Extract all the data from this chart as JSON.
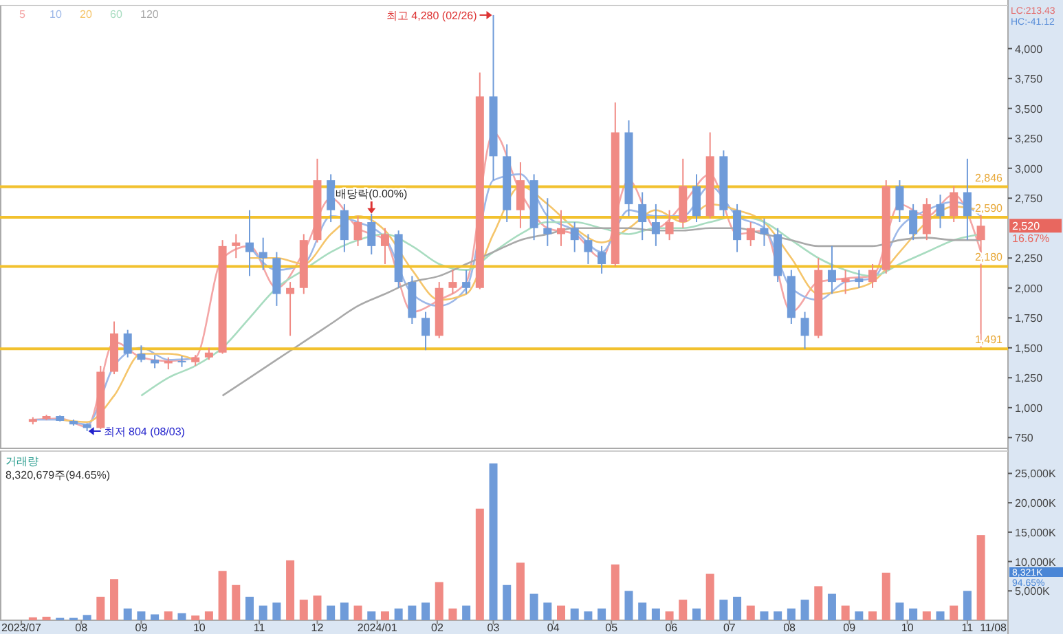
{
  "chart_data": [
    {
      "type": "candlestick",
      "x": [
        "2023-07-07",
        "2023-07-14",
        "2023-07-21",
        "2023-07-28",
        "2023-08-04",
        "2023-08-11",
        "2023-08-18",
        "2023-08-25",
        "2023-09-01",
        "2023-09-08",
        "2023-09-15",
        "2023-09-22",
        "2023-09-29",
        "2023-10-06",
        "2023-10-13",
        "2023-10-20",
        "2023-10-27",
        "2023-11-03",
        "2023-11-10",
        "2023-11-17",
        "2023-11-24",
        "2023-12-01",
        "2023-12-08",
        "2023-12-15",
        "2023-12-22",
        "2023-12-29",
        "2024-01-05",
        "2024-01-12",
        "2024-01-19",
        "2024-01-26",
        "2024-02-02",
        "2024-02-09",
        "2024-02-16",
        "2024-02-23",
        "2024-03-01",
        "2024-03-08",
        "2024-03-15",
        "2024-03-22",
        "2024-03-29",
        "2024-04-05",
        "2024-04-12",
        "2024-04-19",
        "2024-04-26",
        "2024-05-03",
        "2024-05-10",
        "2024-05-17",
        "2024-05-24",
        "2024-05-31",
        "2024-06-07",
        "2024-06-14",
        "2024-06-21",
        "2024-06-28",
        "2024-07-05",
        "2024-07-12",
        "2024-07-19",
        "2024-07-26",
        "2024-08-02",
        "2024-08-09",
        "2024-08-16",
        "2024-08-23",
        "2024-08-30",
        "2024-09-06",
        "2024-09-13",
        "2024-09-20",
        "2024-09-27",
        "2024-10-04",
        "2024-10-11",
        "2024-10-18",
        "2024-10-25",
        "2024-11-01",
        "2024-11-08"
      ],
      "ohlc": [
        [
          880,
          920,
          860,
          905
        ],
        [
          905,
          940,
          895,
          930
        ],
        [
          930,
          935,
          885,
          890
        ],
        [
          890,
          900,
          850,
          860
        ],
        [
          860,
          870,
          804,
          830
        ],
        [
          830,
          1350,
          820,
          1300
        ],
        [
          1300,
          1720,
          1280,
          1620
        ],
        [
          1620,
          1650,
          1420,
          1450
        ],
        [
          1450,
          1520,
          1380,
          1400
        ],
        [
          1400,
          1440,
          1330,
          1370
        ],
        [
          1370,
          1420,
          1320,
          1390
        ],
        [
          1390,
          1430,
          1340,
          1380
        ],
        [
          1380,
          1440,
          1350,
          1420
        ],
        [
          1420,
          1500,
          1400,
          1460
        ],
        [
          1460,
          2400,
          1450,
          2350
        ],
        [
          2350,
          2450,
          2250,
          2380
        ],
        [
          2380,
          2650,
          2100,
          2300
        ],
        [
          2300,
          2420,
          2150,
          2250
        ],
        [
          2250,
          2300,
          1850,
          1950
        ],
        [
          1950,
          2050,
          1600,
          2000
        ],
        [
          2000,
          2450,
          1950,
          2400
        ],
        [
          2400,
          3080,
          2380,
          2900
        ],
        [
          2900,
          2950,
          2550,
          2650
        ],
        [
          2650,
          2700,
          2300,
          2400
        ],
        [
          2400,
          2600,
          2350,
          2550
        ],
        [
          2550,
          2620,
          2280,
          2350
        ],
        [
          2350,
          2500,
          2200,
          2450
        ],
        [
          2450,
          2480,
          2000,
          2050
        ],
        [
          2050,
          2100,
          1700,
          1750
        ],
        [
          1750,
          1800,
          1480,
          1600
        ],
        [
          1600,
          2050,
          1580,
          2000
        ],
        [
          2000,
          2150,
          1950,
          2050
        ],
        [
          2050,
          2150,
          1950,
          2000
        ],
        [
          2000,
          3800,
          1990,
          3600
        ],
        [
          3600,
          4280,
          2900,
          3100
        ],
        [
          3100,
          3200,
          2550,
          2650
        ],
        [
          2650,
          3050,
          2500,
          2900
        ],
        [
          2900,
          2950,
          2400,
          2500
        ],
        [
          2500,
          2750,
          2350,
          2450
        ],
        [
          2450,
          2650,
          2350,
          2500
        ],
        [
          2500,
          2550,
          2300,
          2400
        ],
        [
          2400,
          2450,
          2200,
          2300
        ],
        [
          2300,
          2350,
          2120,
          2200
        ],
        [
          2200,
          3550,
          2180,
          3300
        ],
        [
          3300,
          3400,
          2600,
          2700
        ],
        [
          2700,
          2800,
          2400,
          2550
        ],
        [
          2550,
          2700,
          2350,
          2450
        ],
        [
          2450,
          2650,
          2400,
          2550
        ],
        [
          2550,
          3080,
          2500,
          2850
        ],
        [
          2850,
          2950,
          2550,
          2600
        ],
        [
          2600,
          3300,
          2580,
          3100
        ],
        [
          3100,
          3150,
          2600,
          2650
        ],
        [
          2650,
          2700,
          2300,
          2400
        ],
        [
          2400,
          2550,
          2350,
          2500
        ],
        [
          2500,
          2580,
          2350,
          2450
        ],
        [
          2450,
          2500,
          2050,
          2100
        ],
        [
          2100,
          2150,
          1700,
          1750
        ],
        [
          1750,
          1800,
          1491,
          1600
        ],
        [
          1600,
          2250,
          1580,
          2150
        ],
        [
          2150,
          2350,
          1950,
          2050
        ],
        [
          2050,
          2150,
          1950,
          2080
        ],
        [
          2080,
          2150,
          2000,
          2050
        ],
        [
          2050,
          2200,
          2000,
          2150
        ],
        [
          2150,
          2900,
          2120,
          2850
        ],
        [
          2850,
          2900,
          2550,
          2650
        ],
        [
          2650,
          2700,
          2400,
          2450
        ],
        [
          2450,
          2750,
          2400,
          2700
        ],
        [
          2700,
          2780,
          2500,
          2600
        ],
        [
          2600,
          2850,
          2550,
          2800
        ],
        [
          2800,
          3080,
          2400,
          2600
        ],
        [
          2400,
          2650,
          1500,
          2520
        ]
      ],
      "colors": [
        "#f08a84",
        "#f08a84",
        "#6f9bd9",
        "#6f9bd9",
        "#6f9bd9",
        "#f08a84",
        "#f08a84",
        "#6f9bd9",
        "#6f9bd9",
        "#6f9bd9",
        "#f08a84",
        "#6f9bd9",
        "#f08a84",
        "#f08a84",
        "#f08a84",
        "#f08a84",
        "#6f9bd9",
        "#6f9bd9",
        "#6f9bd9",
        "#f08a84",
        "#f08a84",
        "#f08a84",
        "#6f9bd9",
        "#6f9bd9",
        "#f08a84",
        "#6f9bd9",
        "#f08a84",
        "#6f9bd9",
        "#6f9bd9",
        "#6f9bd9",
        "#f08a84",
        "#f08a84",
        "#6f9bd9",
        "#f08a84",
        "#6f9bd9",
        "#6f9bd9",
        "#f08a84",
        "#6f9bd9",
        "#6f9bd9",
        "#f08a84",
        "#6f9bd9",
        "#6f9bd9",
        "#6f9bd9",
        "#f08a84",
        "#6f9bd9",
        "#6f9bd9",
        "#6f9bd9",
        "#f08a84",
        "#f08a84",
        "#6f9bd9",
        "#f08a84",
        "#6f9bd9",
        "#6f9bd9",
        "#f08a84",
        "#6f9bd9",
        "#6f9bd9",
        "#6f9bd9",
        "#6f9bd9",
        "#f08a84",
        "#6f9bd9",
        "#f08a84",
        "#6f9bd9",
        "#f08a84",
        "#f08a84",
        "#6f9bd9",
        "#6f9bd9",
        "#f08a84",
        "#6f9bd9",
        "#f08a84",
        "#6f9bd9",
        "#f08a84"
      ],
      "series": [
        {
          "type": "line",
          "name": "5",
          "color": "#f4a6a6",
          "x": [
            "2023-07-07",
            "2023-07-21",
            "2023-08-04",
            "2023-08-18",
            "2023-09-01",
            "2023-09-15",
            "2023-09-29",
            "2023-10-13",
            "2023-10-27",
            "2023-11-10",
            "2023-11-24",
            "2023-12-08",
            "2023-12-22",
            "2024-01-05",
            "2024-01-19",
            "2024-02-02",
            "2024-02-16",
            "2024-03-01",
            "2024-03-15",
            "2024-03-29",
            "2024-04-12",
            "2024-04-26",
            "2024-05-10",
            "2024-05-24",
            "2024-06-07",
            "2024-06-21",
            "2024-07-05",
            "2024-07-19",
            "2024-08-02",
            "2024-08-16",
            "2024-08-30",
            "2024-09-13",
            "2024-09-27",
            "2024-10-11",
            "2024-10-25",
            "2024-11-08"
          ],
          "values": [
            900,
            910,
            840,
            1550,
            1420,
            1390,
            1420,
            2250,
            2350,
            2000,
            2300,
            2750,
            2500,
            2400,
            1800,
            1900,
            2050,
            3300,
            2800,
            2500,
            2450,
            2250,
            2900,
            2500,
            2700,
            2950,
            2450,
            2480,
            1800,
            2050,
            2080,
            2100,
            2700,
            2600,
            2780,
            2300
          ]
        },
        {
          "type": "line",
          "name": "10",
          "color": "#9db8e8",
          "x": [
            "2023-07-07",
            "2023-07-21",
            "2023-08-04",
            "2023-08-18",
            "2023-09-01",
            "2023-09-15",
            "2023-09-29",
            "2023-10-13",
            "2023-10-27",
            "2023-11-10",
            "2023-11-24",
            "2023-12-08",
            "2023-12-22",
            "2024-01-05",
            "2024-01-19",
            "2024-02-02",
            "2024-02-16",
            "2024-03-01",
            "2024-03-15",
            "2024-03-29",
            "2024-04-12",
            "2024-04-26",
            "2024-05-10",
            "2024-05-24",
            "2024-06-07",
            "2024-06-21",
            "2024-07-05",
            "2024-07-19",
            "2024-08-02",
            "2024-08-16",
            "2024-08-30",
            "2024-09-13",
            "2024-09-27",
            "2024-10-11",
            "2024-10-25",
            "2024-11-08"
          ],
          "values": [
            900,
            900,
            860,
            1350,
            1500,
            1400,
            1410,
            null,
            2350,
            2150,
            2200,
            2600,
            2550,
            2420,
            1950,
            1850,
            2000,
            2900,
            2950,
            2600,
            2480,
            2300,
            2650,
            2600,
            2600,
            2850,
            2600,
            2500,
            2000,
            1900,
            2050,
            2080,
            2500,
            2650,
            2720,
            2600
          ]
        },
        {
          "type": "line",
          "name": "20",
          "color": "#f5c56b",
          "x": [
            "2023-07-21",
            "2023-08-04",
            "2023-08-18",
            "2023-09-01",
            "2023-09-15",
            "2023-09-29",
            "2023-10-13",
            "2023-10-27",
            "2023-11-10",
            "2023-11-24",
            "2023-12-08",
            "2023-12-22",
            "2024-01-05",
            "2024-01-19",
            "2024-02-02",
            "2024-02-16",
            "2024-03-01",
            "2024-03-15",
            "2024-03-29",
            "2024-04-12",
            "2024-04-26",
            "2024-05-10",
            "2024-05-24",
            "2024-06-07",
            "2024-06-21",
            "2024-07-05",
            "2024-07-19",
            "2024-08-02",
            "2024-08-16",
            "2024-08-30",
            "2024-09-13",
            "2024-09-27",
            "2024-10-11",
            "2024-10-25",
            "2024-11-08"
          ],
          "values": [
            900,
            880,
            1100,
            1450,
            1450,
            1400,
            null,
            2250,
            2250,
            2200,
            2450,
            2600,
            2480,
            2150,
            1900,
            1950,
            2450,
            2850,
            2700,
            2500,
            2380,
            2500,
            2650,
            2550,
            2700,
            2650,
            2550,
            2250,
            1950,
            1980,
            2050,
            2300,
            2550,
            2680,
            2650
          ]
        },
        {
          "type": "line",
          "name": "60",
          "color": "#a8dcc0",
          "x": [
            "2023-09-01",
            "2023-09-15",
            "2023-09-29",
            "2023-10-13",
            "2023-10-27",
            "2023-11-10",
            "2023-11-24",
            "2023-12-08",
            "2023-12-22",
            "2024-01-05",
            "2024-01-19",
            "2024-02-02",
            "2024-02-16",
            "2024-03-01",
            "2024-03-15",
            "2024-03-29",
            "2024-04-12",
            "2024-04-26",
            "2024-05-10",
            "2024-05-24",
            "2024-06-07",
            "2024-06-21",
            "2024-07-05",
            "2024-07-19",
            "2024-08-02",
            "2024-08-16",
            "2024-08-30",
            "2024-09-13",
            "2024-09-27",
            "2024-10-11",
            "2024-10-25",
            "2024-11-08"
          ],
          "values": [
            1100,
            1250,
            1350,
            1500,
            1750,
            2000,
            2150,
            2300,
            2400,
            2450,
            2350,
            2200,
            2150,
            2300,
            2450,
            2550,
            2550,
            2500,
            2450,
            2500,
            2500,
            2550,
            2600,
            2550,
            2400,
            2250,
            2150,
            2100,
            2200,
            2300,
            2400,
            2450
          ]
        },
        {
          "type": "line",
          "name": "120",
          "color": "#a9a9a9",
          "x": [
            "2023-10-13",
            "2023-10-27",
            "2023-11-10",
            "2023-11-24",
            "2023-12-08",
            "2023-12-22",
            "2024-01-05",
            "2024-01-19",
            "2024-02-02",
            "2024-02-16",
            "2024-03-01",
            "2024-03-15",
            "2024-03-29",
            "2024-04-12",
            "2024-04-26",
            "2024-05-10",
            "2024-05-24",
            "2024-06-07",
            "2024-06-21",
            "2024-07-05",
            "2024-07-19",
            "2024-08-02",
            "2024-08-16",
            "2024-08-30",
            "2024-09-13",
            "2024-09-27",
            "2024-10-11",
            "2024-10-25",
            "2024-11-08"
          ],
          "values": [
            1100,
            1250,
            1400,
            1550,
            1700,
            1850,
            1950,
            2050,
            2100,
            2200,
            2300,
            2400,
            2450,
            2500,
            2500,
            2500,
            2480,
            2480,
            2500,
            2500,
            2450,
            2400,
            2350,
            2350,
            2350,
            2400,
            2420,
            2400,
            2400
          ]
        }
      ],
      "xlim": [
        "2023-06-20",
        "2024-11-22"
      ],
      "ylim": [
        660,
        4360
      ],
      "yticks": [
        750,
        {
          "value": 1000,
          "label": "1,000"
        },
        {
          "value": 1250,
          "label": "1,250"
        },
        {
          "value": 1500,
          "label": "1,500"
        },
        {
          "value": 1750,
          "label": "1,750"
        },
        {
          "value": 2000,
          "label": "2,000"
        },
        {
          "value": 2250,
          "label": "2,250"
        },
        {
          "value": 2750,
          "label": "2,750"
        },
        {
          "value": 3000,
          "label": "3,000"
        },
        {
          "value": 3250,
          "label": "3,250"
        },
        {
          "value": 3500,
          "label": "3,500"
        },
        {
          "value": 3750,
          "label": "3,750"
        },
        {
          "value": 4000,
          "label": "4,000"
        }
      ],
      "ref_lines": [
        {
          "axis": "y",
          "value": 2846,
          "label": "2,846",
          "color": "#f2c12e"
        },
        {
          "axis": "y",
          "value": 2590,
          "label": "2,590",
          "color": "#f2c12e"
        },
        {
          "axis": "y",
          "value": 2180,
          "label": "2,180",
          "color": "#f2c12e"
        },
        {
          "axis": "y",
          "value": 1491,
          "label": "1,491",
          "color": "#f2c12e"
        }
      ],
      "annotations": [
        {
          "text": "최고 4,280 (02/26)",
          "x": "2024-03-01",
          "y": 4280
        },
        {
          "text": "최저 804 (08/03)",
          "x": "2023-08-04",
          "y": 804
        },
        {
          "text": "배당락(0.00%)",
          "x": "2023-12-29",
          "y": 2620
        },
        "LC:213.43",
        "HC:-41.12",
        "2,520",
        "16.67%"
      ],
      "legend": "top left",
      "tick_labels": "y"
    },
    {
      "type": "bar",
      "title": "거래량",
      "x": [
        "2023-07-07",
        "2023-07-14",
        "2023-07-21",
        "2023-07-28",
        "2023-08-04",
        "2023-08-11",
        "2023-08-18",
        "2023-08-25",
        "2023-09-01",
        "2023-09-08",
        "2023-09-15",
        "2023-09-22",
        "2023-09-29",
        "2023-10-06",
        "2023-10-13",
        "2023-10-20",
        "2023-10-27",
        "2023-11-03",
        "2023-11-10",
        "2023-11-17",
        "2023-11-24",
        "2023-12-01",
        "2023-12-08",
        "2023-12-15",
        "2023-12-22",
        "2023-12-29",
        "2024-01-05",
        "2024-01-12",
        "2024-01-19",
        "2024-01-26",
        "2024-02-02",
        "2024-02-09",
        "2024-02-16",
        "2024-02-23",
        "2024-03-01",
        "2024-03-08",
        "2024-03-15",
        "2024-03-22",
        "2024-03-29",
        "2024-04-05",
        "2024-04-12",
        "2024-04-19",
        "2024-04-26",
        "2024-05-03",
        "2024-05-10",
        "2024-05-17",
        "2024-05-24",
        "2024-05-31",
        "2024-06-07",
        "2024-06-14",
        "2024-06-21",
        "2024-06-28",
        "2024-07-05",
        "2024-07-12",
        "2024-07-19",
        "2024-07-26",
        "2024-08-02",
        "2024-08-09",
        "2024-08-16",
        "2024-08-23",
        "2024-08-30",
        "2024-09-06",
        "2024-09-13",
        "2024-09-20",
        "2024-09-27",
        "2024-10-04",
        "2024-10-11",
        "2024-10-18",
        "2024-10-25",
        "2024-11-01",
        "2024-11-08"
      ],
      "values": [
        500,
        600,
        400,
        400,
        900,
        4000,
        7000,
        2000,
        1500,
        1000,
        1500,
        1200,
        800,
        1500,
        8400,
        6000,
        4000,
        2500,
        3000,
        10200,
        3500,
        4200,
        2500,
        3000,
        2500,
        1500,
        1500,
        2000,
        2500,
        3000,
        6500,
        2000,
        2500,
        19000,
        26700,
        6000,
        9800,
        4500,
        3000,
        2500,
        2000,
        1500,
        2000,
        9500,
        5000,
        3000,
        2000,
        1500,
        3500,
        2000,
        7900,
        3500,
        4000,
        2500,
        1500,
        1500,
        2000,
        3500,
        5800,
        4500,
        2500,
        1500,
        1500,
        8100,
        3000,
        2000,
        1500,
        1500,
        2500,
        5000,
        14500
      ],
      "colors": [
        "#f08a84",
        "#f08a84",
        "#6f9bd9",
        "#6f9bd9",
        "#6f9bd9",
        "#f08a84",
        "#f08a84",
        "#6f9bd9",
        "#6f9bd9",
        "#6f9bd9",
        "#f08a84",
        "#6f9bd9",
        "#f08a84",
        "#f08a84",
        "#f08a84",
        "#f08a84",
        "#6f9bd9",
        "#6f9bd9",
        "#6f9bd9",
        "#f08a84",
        "#f08a84",
        "#f08a84",
        "#6f9bd9",
        "#6f9bd9",
        "#f08a84",
        "#6f9bd9",
        "#f08a84",
        "#6f9bd9",
        "#6f9bd9",
        "#6f9bd9",
        "#f08a84",
        "#f08a84",
        "#6f9bd9",
        "#f08a84",
        "#6f9bd9",
        "#6f9bd9",
        "#f08a84",
        "#6f9bd9",
        "#6f9bd9",
        "#f08a84",
        "#6f9bd9",
        "#6f9bd9",
        "#6f9bd9",
        "#f08a84",
        "#6f9bd9",
        "#6f9bd9",
        "#6f9bd9",
        "#f08a84",
        "#f08a84",
        "#6f9bd9",
        "#f08a84",
        "#6f9bd9",
        "#6f9bd9",
        "#f08a84",
        "#6f9bd9",
        "#6f9bd9",
        "#6f9bd9",
        "#6f9bd9",
        "#f08a84",
        "#6f9bd9",
        "#f08a84",
        "#6f9bd9",
        "#f08a84",
        "#f08a84",
        "#6f9bd9",
        "#6f9bd9",
        "#f08a84",
        "#6f9bd9",
        "#f08a84",
        "#6f9bd9",
        "#f08a84"
      ],
      "xlim": [
        "2023-06-20",
        "2024-11-22"
      ],
      "ylim": [
        0,
        28800
      ],
      "xticks": [
        {
          "value": "2023-07-01",
          "label": "2023/07"
        },
        {
          "value": "2023-08-01",
          "label": "08"
        },
        {
          "value": "2023-09-01",
          "label": "09"
        },
        {
          "value": "2023-10-01",
          "label": "10"
        },
        {
          "value": "2023-11-01",
          "label": "11"
        },
        {
          "value": "2023-12-01",
          "label": "12"
        },
        {
          "value": "2024-01-01",
          "label": "2024/01"
        },
        {
          "value": "2024-02-01",
          "label": "02"
        },
        {
          "value": "2024-03-01",
          "label": "03"
        },
        {
          "value": "2024-04-01",
          "label": "04"
        },
        {
          "value": "2024-05-01",
          "label": "05"
        },
        {
          "value": "2024-06-01",
          "label": "06"
        },
        {
          "value": "2024-07-01",
          "label": "07"
        },
        {
          "value": "2024-08-01",
          "label": "08"
        },
        {
          "value": "2024-09-01",
          "label": "09"
        },
        {
          "value": "2024-10-01",
          "label": "10"
        },
        {
          "value": "2024-11-01",
          "label": "11"
        }
      ],
      "yticks": [
        {
          "value": 5000,
          "label": "5,000K"
        },
        {
          "value": 10000,
          "label": "10,000K"
        },
        {
          "value": 15000,
          "label": "15,000K"
        },
        {
          "value": 20000,
          "label": "20,000K"
        },
        {
          "value": 25000,
          "label": "25,000K"
        }
      ],
      "annotations": [
        "8,320,679주(94.65%)",
        "8,321K",
        "94.65%",
        "11/08"
      ]
    }
  ]
}
